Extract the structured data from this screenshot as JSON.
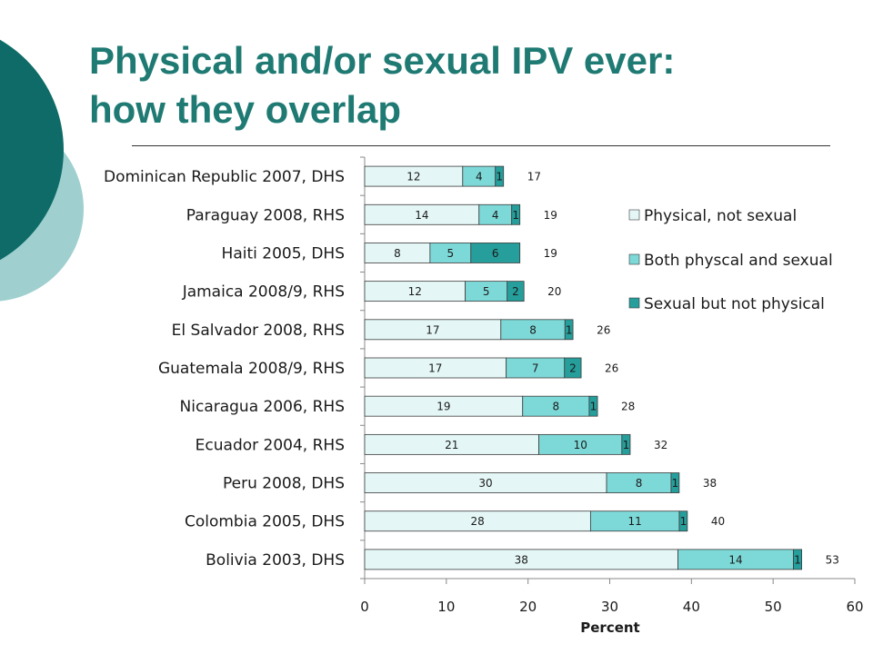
{
  "slide": {
    "title_line1": "Physical and/or sexual IPV ever:",
    "title_line2": "how they overlap",
    "colors": {
      "title": "#1f7a73",
      "deco_dark": "#0e6b67",
      "deco_light": "#9fd0cf"
    }
  },
  "chart_data": {
    "type": "bar",
    "orientation": "horizontal",
    "stacked": true,
    "categories": [
      "Dominican Republic 2007, DHS",
      "Paraguay 2008, RHS",
      "Haiti 2005, DHS",
      "Jamaica 2008/9, RHS",
      "El Salvador 2008, RHS",
      "Guatemala 2008/9, RHS",
      "Nicaragua 2006, RHS",
      "Ecuador 2004, RHS",
      "Peru 2008, DHS",
      "Colombia 2005, DHS",
      "Bolivia 2003, DHS"
    ],
    "series": [
      {
        "name": "Physical, not sexual",
        "color": "#e4f7f6",
        "values": [
          12,
          14,
          8,
          12,
          17,
          17,
          19,
          21,
          30,
          28,
          38
        ]
      },
      {
        "name": "Both physcal and sexual",
        "color": "#7dd9d8",
        "values": [
          4,
          4,
          5,
          5,
          8,
          7,
          8,
          10,
          8,
          11,
          14
        ]
      },
      {
        "name": "Sexual but not physical",
        "color": "#269e9b",
        "values": [
          1,
          1,
          6,
          2,
          1,
          2,
          1,
          1,
          1,
          1,
          1
        ]
      }
    ],
    "segment_labels": [
      [
        "12",
        "4",
        "1"
      ],
      [
        "14",
        "4",
        "1"
      ],
      [
        "8",
        "5",
        "6"
      ],
      [
        "12",
        "5",
        "2"
      ],
      [
        "17",
        "8",
        "1"
      ],
      [
        "17",
        "7",
        "2"
      ],
      [
        "19",
        "8",
        "1"
      ],
      [
        "21",
        "10",
        "1"
      ],
      [
        "30",
        "8",
        "1"
      ],
      [
        "28",
        "11",
        "1"
      ],
      [
        "38",
        "14",
        "1"
      ]
    ],
    "bar_extents": [
      17,
      19,
      19,
      19.5,
      25.5,
      26.5,
      28.5,
      32.5,
      38.5,
      39.5,
      53.5
    ],
    "totals": [
      "17",
      "19",
      "19",
      "20",
      "26",
      "26",
      "28",
      "32",
      "38",
      "40",
      "53"
    ],
    "xlabel": "Percent",
    "xlim": [
      0,
      60
    ],
    "xticks": [
      "0",
      "10",
      "20",
      "30",
      "40",
      "50",
      "60"
    ],
    "legend_position": "right"
  }
}
